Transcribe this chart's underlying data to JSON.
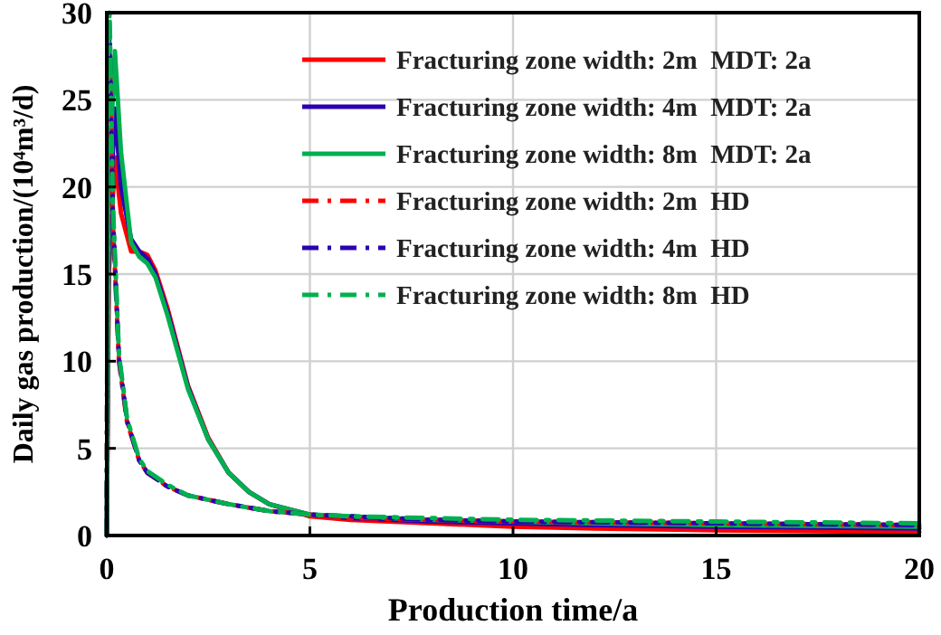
{
  "chart_data": {
    "type": "line",
    "xlabel": "Production time/a",
    "ylabel": "Daily gas production/(10⁴m³/d)",
    "xlim": [
      0,
      20
    ],
    "ylim": [
      0,
      30
    ],
    "xticks": [
      0,
      5,
      10,
      15,
      20
    ],
    "yticks": [
      0,
      5,
      10,
      15,
      20,
      25,
      30
    ],
    "grid": true,
    "legend": "top right",
    "marker": "none",
    "series": [
      {
        "name": "Fracturing zone width: 2m  MDT: 2a",
        "color": "#ff0000",
        "line_style": "solid",
        "x": [
          0,
          0.05,
          0.2,
          0.35,
          0.6,
          0.8,
          1.0,
          1.2,
          1.5,
          2,
          2.5,
          3,
          3.5,
          4,
          5,
          6,
          8,
          10,
          12,
          15,
          20
        ],
        "values": [
          0,
          15,
          21.7,
          18.5,
          16.3,
          16.3,
          16.1,
          15.2,
          13,
          8.6,
          5.6,
          3.6,
          2.5,
          1.8,
          1.1,
          0.9,
          0.7,
          0.5,
          0.4,
          0.3,
          0.2
        ]
      },
      {
        "name": "Fracturing zone width: 4m  MDT: 2a",
        "color": "#2a00b0",
        "line_style": "solid",
        "x": [
          0,
          0.05,
          0.2,
          0.35,
          0.6,
          0.8,
          1.0,
          1.2,
          1.5,
          2,
          2.5,
          3,
          3.5,
          4,
          5,
          6,
          8,
          10,
          12,
          15,
          20
        ],
        "values": [
          0,
          17,
          24.5,
          20,
          17,
          16.3,
          15.9,
          15,
          12.8,
          8.5,
          5.5,
          3.6,
          2.5,
          1.8,
          1.2,
          1,
          0.8,
          0.7,
          0.6,
          0.5,
          0.4
        ]
      },
      {
        "name": "Fracturing zone width: 8m  MDT: 2a",
        "color": "#00b050",
        "line_style": "solid",
        "x": [
          0,
          0.05,
          0.2,
          0.35,
          0.6,
          0.8,
          1.0,
          1.2,
          1.5,
          2,
          2.5,
          3,
          3.5,
          4,
          5,
          6,
          8,
          10,
          12,
          15,
          20
        ],
        "values": [
          0,
          20,
          27.8,
          22,
          16.8,
          16,
          15.6,
          14.8,
          12.6,
          8.4,
          5.5,
          3.6,
          2.5,
          1.8,
          1.2,
          1.1,
          0.9,
          0.8,
          0.7,
          0.6,
          0.5
        ]
      },
      {
        "name": "Fracturing zone width: 2m  HD",
        "color": "#ff0000",
        "line_style": "dashed",
        "x": [
          0,
          0.03,
          0.07,
          0.15,
          0.3,
          0.5,
          0.8,
          1,
          1.5,
          2,
          3,
          4,
          5,
          6,
          8,
          10,
          15,
          20
        ],
        "values": [
          0,
          25,
          28,
          18,
          10,
          6.5,
          4.3,
          3.6,
          2.8,
          2.3,
          1.8,
          1.4,
          1.2,
          1.0,
          0.9,
          0.8,
          0.7,
          0.6
        ]
      },
      {
        "name": "Fracturing zone width: 4m  HD",
        "color": "#2a00b0",
        "line_style": "dashed",
        "x": [
          0,
          0.03,
          0.07,
          0.15,
          0.3,
          0.5,
          0.8,
          1,
          1.5,
          2,
          3,
          4,
          5,
          6,
          8,
          10,
          15,
          20
        ],
        "values": [
          0,
          26,
          29,
          18.5,
          10.2,
          6.6,
          4.3,
          3.6,
          2.8,
          2.3,
          1.8,
          1.4,
          1.2,
          1.1,
          0.9,
          0.8,
          0.7,
          0.6
        ]
      },
      {
        "name": "Fracturing zone width: 8m  HD",
        "color": "#00b050",
        "line_style": "dashed",
        "x": [
          0,
          0.03,
          0.07,
          0.15,
          0.3,
          0.5,
          0.8,
          1,
          1.5,
          2,
          3,
          4,
          5,
          6,
          8,
          10,
          15,
          20
        ],
        "values": [
          0,
          27,
          30,
          19,
          10.4,
          6.7,
          4.4,
          3.7,
          2.9,
          2.3,
          1.8,
          1.4,
          1.2,
          1.1,
          1.0,
          0.9,
          0.8,
          0.7
        ]
      }
    ]
  }
}
